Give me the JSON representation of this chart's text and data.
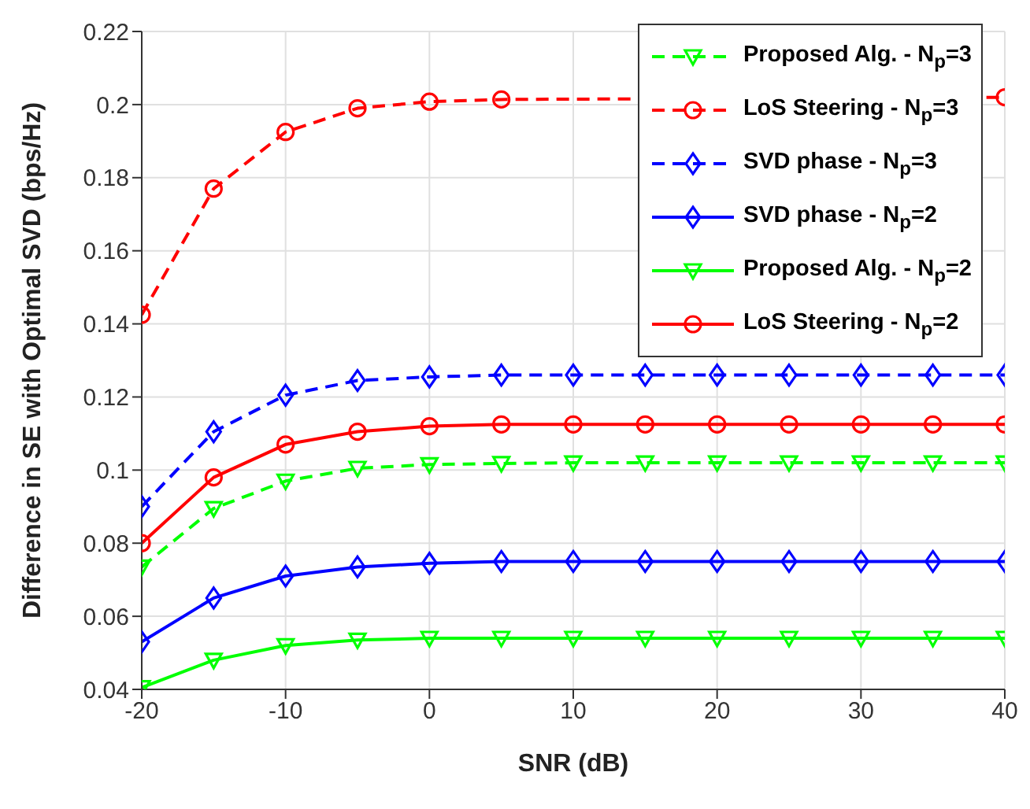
{
  "chart_data": {
    "type": "line",
    "xlabel": "SNR (dB)",
    "ylabel": "Difference in SE with Optimal SVD (bps/Hz)",
    "x": [
      -20,
      -15,
      -10,
      -5,
      0,
      5,
      10,
      15,
      20,
      25,
      30,
      35,
      40
    ],
    "xlim": [
      -20,
      40
    ],
    "xticks": [
      -20,
      -10,
      0,
      10,
      20,
      30,
      40
    ],
    "ylim": [
      0.04,
      0.22
    ],
    "yticks": [
      0.04,
      0.06,
      0.08,
      0.1,
      0.12,
      0.14,
      0.16,
      0.18,
      0.2,
      0.22
    ],
    "grid": true,
    "legend": "top right",
    "series": [
      {
        "name": "Proposed Alg. - N$_{p}$=3",
        "color": "#00ff00",
        "marker": "triangle",
        "line_style": "dashed",
        "values": [
          0.0735,
          0.0895,
          0.097,
          0.1005,
          0.1015,
          0.1018,
          0.102,
          0.102,
          0.102,
          0.102,
          0.102,
          0.102,
          0.102
        ]
      },
      {
        "name": "LoS Steering - N$_{p}$=3",
        "color": "#ff0000",
        "marker": "circle",
        "line_style": "dashed",
        "values": [
          0.1425,
          0.177,
          0.1925,
          0.199,
          0.2008,
          0.2014,
          null,
          null,
          null,
          null,
          null,
          null,
          0.202
        ]
      },
      {
        "name": "SVD phase - N$_{p}$=3",
        "color": "#0000ff",
        "marker": "diamond",
        "line_style": "dashed",
        "values": [
          0.09,
          0.1105,
          0.1205,
          0.1245,
          0.1255,
          0.126,
          0.126,
          0.126,
          0.126,
          0.126,
          0.126,
          0.126,
          0.126
        ]
      },
      {
        "name": "SVD phase - N$_{p}$=2",
        "color": "#0000ff",
        "marker": "diamond",
        "line_style": "solid",
        "values": [
          0.053,
          0.065,
          0.071,
          0.0735,
          0.0745,
          0.075,
          0.075,
          0.075,
          0.075,
          0.075,
          0.075,
          0.075,
          0.075
        ]
      },
      {
        "name": "Proposed Alg. - N$_{p}$=2",
        "color": "#00ff00",
        "marker": "triangle",
        "line_style": "solid",
        "values": [
          0.0405,
          0.048,
          0.052,
          0.0535,
          0.054,
          0.054,
          0.054,
          0.054,
          0.054,
          0.054,
          0.054,
          0.054,
          0.054
        ]
      },
      {
        "name": "LoS Steering - N$_{p}$=2",
        "color": "#ff0000",
        "marker": "circle",
        "line_style": "solid",
        "values": [
          0.08,
          0.098,
          0.107,
          0.1105,
          0.112,
          0.1125,
          0.1125,
          0.1125,
          0.1125,
          0.1125,
          0.1125,
          0.1125,
          0.1125
        ]
      }
    ]
  }
}
